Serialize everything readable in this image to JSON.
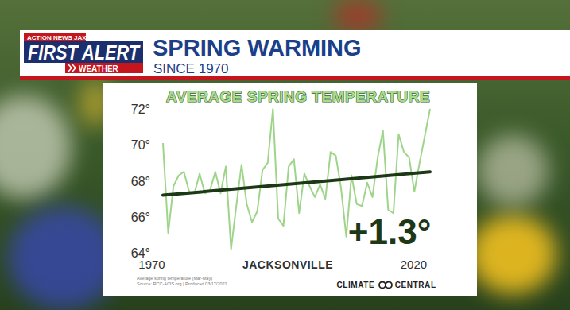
{
  "header": {
    "logo_top": "ACTION NEWS JAX",
    "logo_main": "FIRST ALERT",
    "logo_sub": "WEATHER",
    "title": "SPRING WARMING",
    "subtitle": "SINCE 1970"
  },
  "chart_data": {
    "type": "line",
    "title": "AVERAGE SPRING TEMPERATURE",
    "xlabel": "JACKSONVILLE",
    "x": [
      1970,
      1971,
      1972,
      1973,
      1974,
      1975,
      1976,
      1977,
      1978,
      1979,
      1980,
      1981,
      1982,
      1983,
      1984,
      1985,
      1986,
      1987,
      1988,
      1989,
      1990,
      1991,
      1992,
      1993,
      1994,
      1995,
      1996,
      1997,
      1998,
      1999,
      2000,
      2001,
      2002,
      2003,
      2004,
      2005,
      2006,
      2007,
      2008,
      2009,
      2010,
      2011,
      2012,
      2013,
      2014,
      2015,
      2016,
      2017,
      2018,
      2019,
      2020,
      2021
    ],
    "values": [
      70.1,
      65.1,
      67.7,
      68.3,
      68.5,
      67.4,
      67.3,
      68.4,
      67.3,
      67.5,
      68.5,
      67.3,
      68.8,
      64.2,
      66.6,
      68.9,
      66.7,
      65.7,
      66.3,
      68.6,
      69.0,
      72.0,
      65.9,
      65.5,
      68.8,
      69.2,
      66.2,
      68.4,
      67.7,
      67.1,
      67.8,
      67.0,
      69.6,
      69.4,
      67.6,
      64.9,
      68.3,
      66.7,
      66.6,
      67.9,
      67.1,
      69.3,
      70.8,
      66.4,
      66.2,
      70.6,
      69.6,
      69.3,
      67.4,
      69.0,
      70.5,
      72.0
    ],
    "color": "#9fd58a",
    "trend": {
      "x": [
        1970,
        2021
      ],
      "values": [
        67.2,
        68.5
      ],
      "color": "#1d3816"
    },
    "annotations": [
      "+1.3°"
    ],
    "xlim": [
      1970,
      2021
    ],
    "xticks": [
      1970,
      2020
    ],
    "ylim": [
      64,
      72
    ],
    "yticks": [
      {
        "value": 64,
        "label": "64°"
      },
      {
        "value": 66,
        "label": "66°"
      },
      {
        "value": 68,
        "label": "68°"
      },
      {
        "value": 70,
        "label": "70°"
      },
      {
        "value": 72,
        "label": "72°"
      }
    ],
    "grid": false,
    "source": [
      "Average spring temperature (Mar-May)",
      "Source: RCC-ACIS.org | Produced 03/17/2021"
    ],
    "credit": "CLIMATE CENTRAL"
  }
}
